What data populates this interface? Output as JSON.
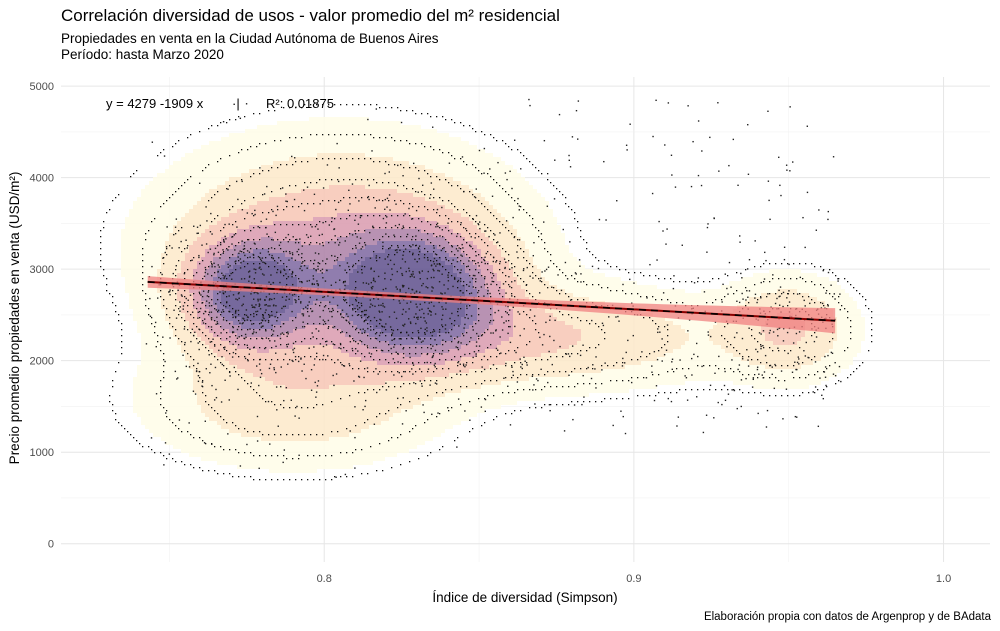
{
  "header": {
    "title": "Correlación diversidad de usos - valor promedio del m² residencial",
    "subtitle_line1": "Propiedades en venta en la Ciudad Autónoma de Buenos Aires",
    "subtitle_line2": "Período: hasta Marzo 2020"
  },
  "caption": "Elaboración propia con datos de Argenprop y de BAdata",
  "chart_data": {
    "type": "scatter",
    "title": "Correlación diversidad de usos - valor promedio del m² residencial",
    "xlabel": "Índice de diversidad (Simpson)",
    "ylabel": "Precio promedio propiedades en venta (USD/m²)",
    "xlim": [
      0.715,
      1.015
    ],
    "ylim": [
      -200,
      5100
    ],
    "x_ticks": [
      0.8,
      0.9,
      1.0
    ],
    "x_tick_labels": [
      "0.8",
      "0.9",
      "1.0"
    ],
    "y_ticks": [
      0,
      1000,
      2000,
      3000,
      4000,
      5000
    ],
    "y_tick_labels": [
      "0",
      "1000",
      "2000",
      "3000",
      "4000",
      "5000"
    ],
    "grid": true,
    "regression": {
      "equation_label": "y = 4279 -1909 x",
      "separator": "·|",
      "r2_label": "R²: 0.01875",
      "intercept": 4279,
      "slope": -1909,
      "x_range": [
        0.743,
        0.965
      ],
      "line_color": "#8b0000",
      "band_color": "#f08080"
    },
    "density_clusters": [
      {
        "x": 0.776,
        "y": 2730,
        "sx": 0.013,
        "sy": 380,
        "w": 0.9
      },
      {
        "x": 0.829,
        "y": 2720,
        "sx": 0.017,
        "sy": 430,
        "w": 1.0
      },
      {
        "x": 0.805,
        "y": 3250,
        "sx": 0.035,
        "sy": 700,
        "w": 0.45
      },
      {
        "x": 0.79,
        "y": 1550,
        "sx": 0.03,
        "sy": 450,
        "w": 0.25
      },
      {
        "x": 0.87,
        "y": 2250,
        "sx": 0.04,
        "sy": 350,
        "w": 0.3
      },
      {
        "x": 0.95,
        "y": 2350,
        "sx": 0.013,
        "sy": 350,
        "w": 0.3
      }
    ],
    "palette": [
      "#fffde8",
      "#fde9c9",
      "#f7c6b4",
      "#d99aae",
      "#ab7fa6",
      "#7d66a0",
      "#5e4f8c"
    ]
  }
}
